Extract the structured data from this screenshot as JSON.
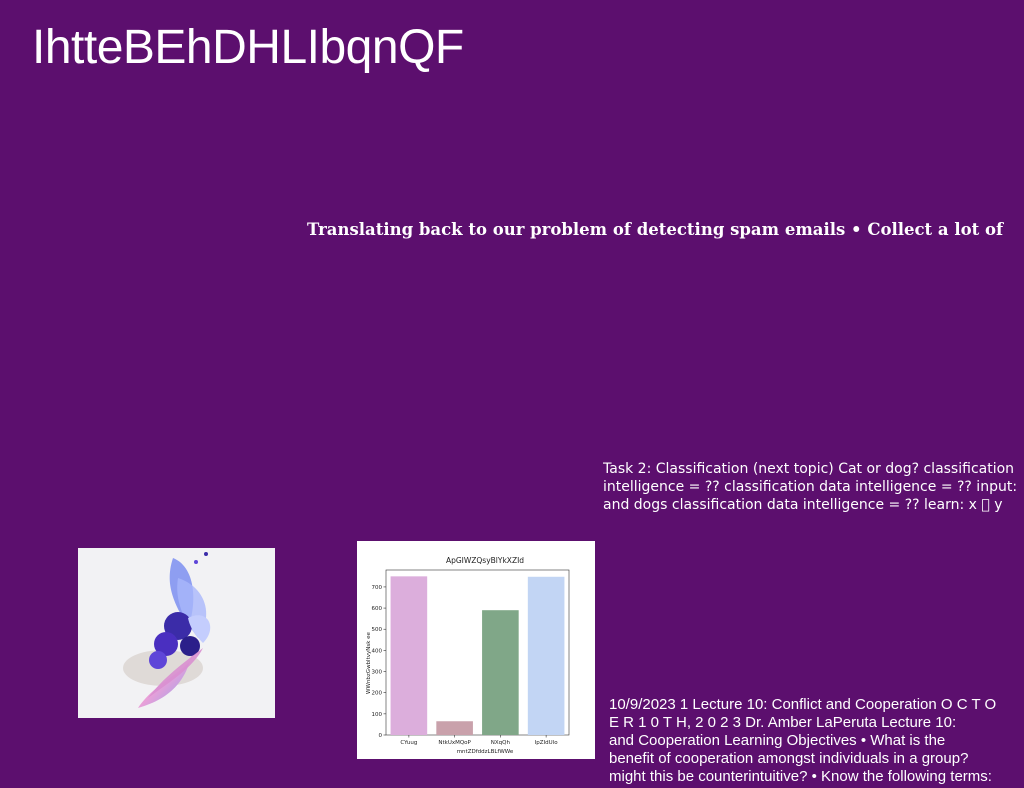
{
  "slide": {
    "title": "IhtteBEhDHLIbqnQF",
    "bold_line": "Translating back to our problem of detecting spam emails • Collect a lot of",
    "task_lines": [
      "Task 2: Classification (next topic) Cat or dog? classification",
      "intelligence = ?? classification data intelligence = ?? input:",
      "and dogs classification data intelligence = ?? learn: x ⃞ y"
    ],
    "lecture_lines": [
      "10/9/2023 1 Lecture 10: Conflict and Cooperation O C T O",
      "E R 1 0 T H, 2 0 2 3 Dr. Amber LaPeruta Lecture 10:",
      "and Cooperation Learning Objectives • What is the",
      "benefit of cooperation amongst individuals in a group?",
      "might this be counterintuitive? • Know the following terms:"
    ]
  },
  "photo": {
    "subject": "blue-violet flower petals and ribbon on white background"
  },
  "colors": {
    "background": "#5c0f6e",
    "text": "#ffffff"
  },
  "chart_data": {
    "type": "bar",
    "title": "ApGIWZQsyBlYkXZId",
    "xlabel": "mntZDfddzLBLfWWe",
    "ylabel": "WWnbzGwbltvyNsk ee",
    "categories": [
      "CYuug",
      "NtkUxMQoP",
      "NXqQh",
      "IpZIdUlo"
    ],
    "values": [
      750,
      65,
      590,
      748
    ],
    "colors": [
      "#dcaedc",
      "#c9a1ab",
      "#80a788",
      "#c2d5f4"
    ],
    "ylim": [
      0,
      780
    ],
    "yticks": [
      0,
      100,
      200,
      300,
      400,
      500,
      600,
      700
    ],
    "grid": false
  }
}
